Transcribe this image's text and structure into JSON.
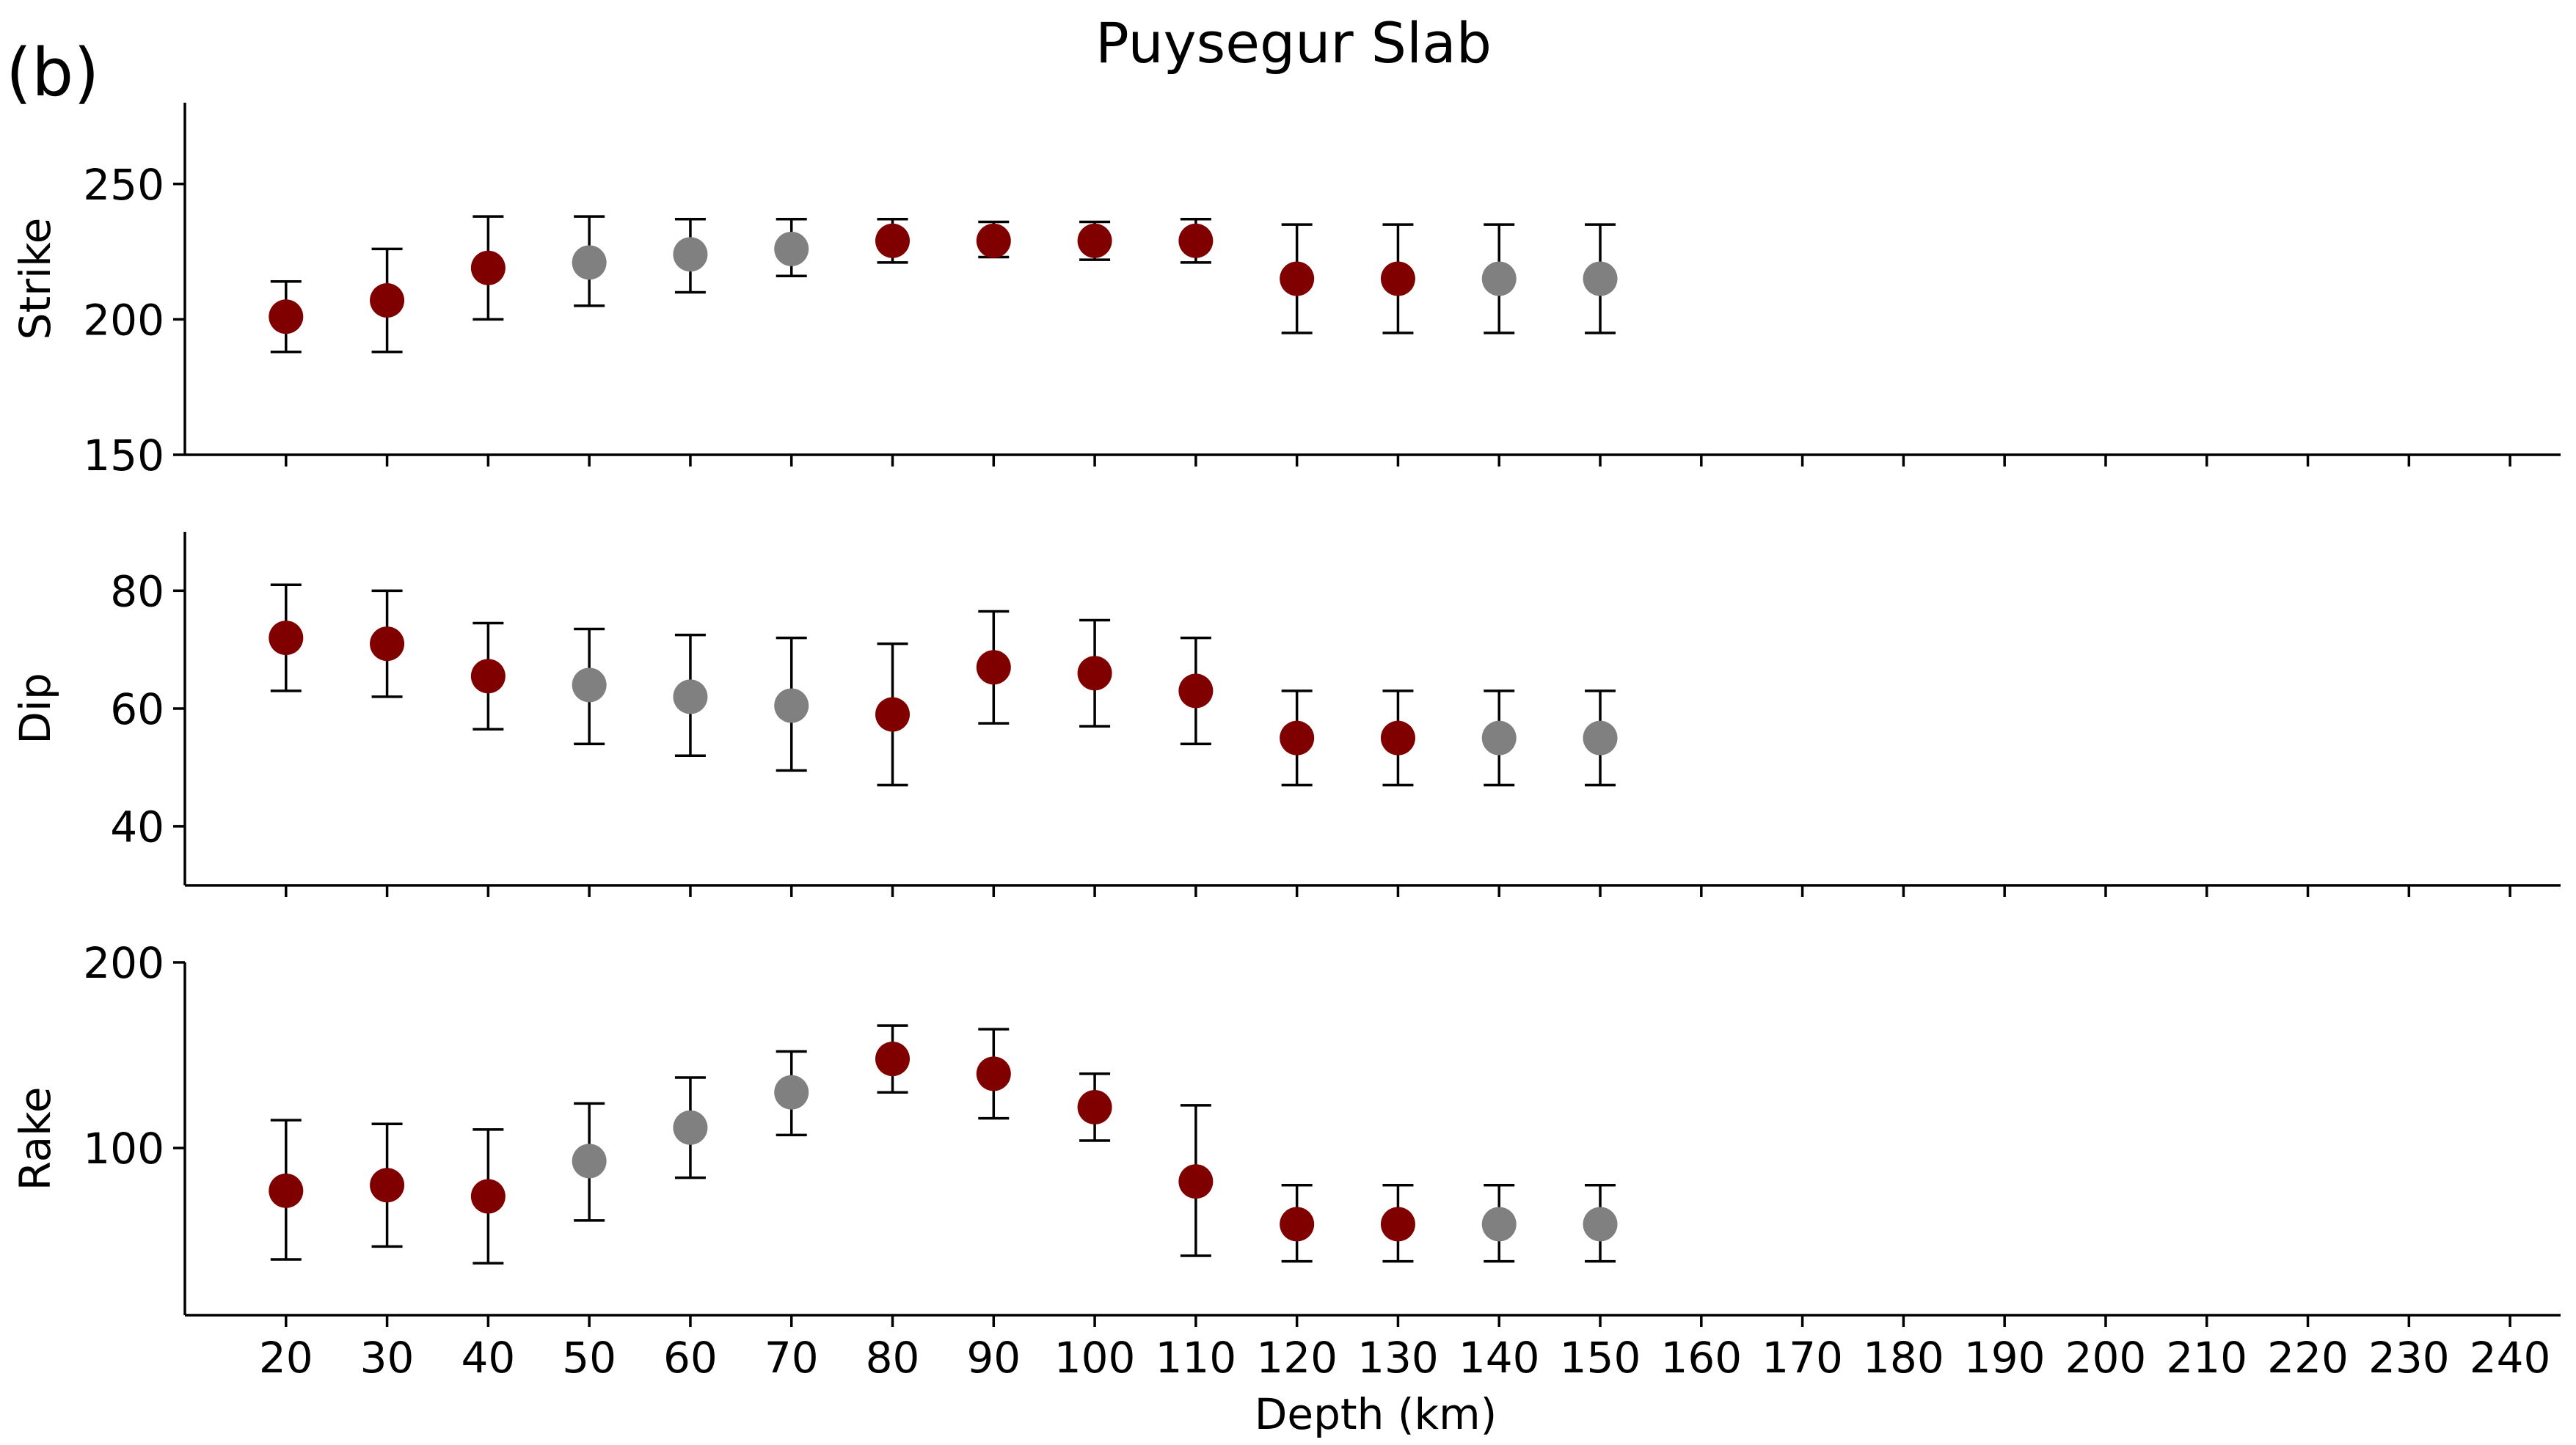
{
  "panel_tag": "(b)",
  "title": "Puysegur Slab",
  "colors": {
    "selected": "#800000",
    "other": "#808080",
    "errorbar": "#000000"
  },
  "chart_data": {
    "type": "scatter",
    "title": "Puysegur Slab",
    "xlabel": "Depth (km)",
    "xlim": [
      10,
      245
    ],
    "x_ticks": [
      20,
      30,
      40,
      50,
      60,
      70,
      80,
      90,
      100,
      110,
      120,
      130,
      140,
      150,
      160,
      170,
      180,
      190,
      200,
      210,
      220,
      230,
      240
    ],
    "sharex": true,
    "grid": false,
    "marker_categories": [
      "selected",
      "other"
    ],
    "panels": [
      {
        "name": "strike",
        "ylabel": "Strike",
        "ylim": [
          150,
          280
        ],
        "y_ticks": [
          150,
          200,
          250
        ],
        "points": [
          {
            "x": 20,
            "y": 201,
            "lo": 188,
            "hi": 214,
            "category": "selected"
          },
          {
            "x": 30,
            "y": 207,
            "lo": 188,
            "hi": 226,
            "category": "selected"
          },
          {
            "x": 40,
            "y": 219,
            "lo": 200,
            "hi": 238,
            "category": "selected"
          },
          {
            "x": 50,
            "y": 221,
            "lo": 205,
            "hi": 238,
            "category": "other"
          },
          {
            "x": 60,
            "y": 224,
            "lo": 210,
            "hi": 237,
            "category": "other"
          },
          {
            "x": 70,
            "y": 226,
            "lo": 216,
            "hi": 237,
            "category": "other"
          },
          {
            "x": 80,
            "y": 229,
            "lo": 221,
            "hi": 237,
            "category": "selected"
          },
          {
            "x": 90,
            "y": 229,
            "lo": 223,
            "hi": 236,
            "category": "selected"
          },
          {
            "x": 100,
            "y": 229,
            "lo": 222,
            "hi": 236,
            "category": "selected"
          },
          {
            "x": 110,
            "y": 229,
            "lo": 221,
            "hi": 237,
            "category": "selected"
          },
          {
            "x": 120,
            "y": 215,
            "lo": 195,
            "hi": 235,
            "category": "selected"
          },
          {
            "x": 130,
            "y": 215,
            "lo": 195,
            "hi": 235,
            "category": "selected"
          },
          {
            "x": 140,
            "y": 215,
            "lo": 195,
            "hi": 235,
            "category": "other"
          },
          {
            "x": 150,
            "y": 215,
            "lo": 195,
            "hi": 235,
            "category": "other"
          }
        ]
      },
      {
        "name": "dip",
        "ylabel": "Dip",
        "ylim": [
          30,
          90
        ],
        "y_ticks": [
          40,
          60,
          80
        ],
        "points": [
          {
            "x": 20,
            "y": 72,
            "lo": 63,
            "hi": 81,
            "category": "selected"
          },
          {
            "x": 30,
            "y": 71,
            "lo": 62,
            "hi": 80,
            "category": "selected"
          },
          {
            "x": 40,
            "y": 65.5,
            "lo": 56.5,
            "hi": 74.5,
            "category": "selected"
          },
          {
            "x": 50,
            "y": 64,
            "lo": 54,
            "hi": 73.5,
            "category": "other"
          },
          {
            "x": 60,
            "y": 62,
            "lo": 52,
            "hi": 72.5,
            "category": "other"
          },
          {
            "x": 70,
            "y": 60.5,
            "lo": 49.5,
            "hi": 72,
            "category": "other"
          },
          {
            "x": 80,
            "y": 59,
            "lo": 47,
            "hi": 71,
            "category": "selected"
          },
          {
            "x": 90,
            "y": 67,
            "lo": 57.5,
            "hi": 76.5,
            "category": "selected"
          },
          {
            "x": 100,
            "y": 66,
            "lo": 57,
            "hi": 75,
            "category": "selected"
          },
          {
            "x": 110,
            "y": 63,
            "lo": 54,
            "hi": 72,
            "category": "selected"
          },
          {
            "x": 120,
            "y": 55,
            "lo": 47,
            "hi": 63,
            "category": "selected"
          },
          {
            "x": 130,
            "y": 55,
            "lo": 47,
            "hi": 63,
            "category": "selected"
          },
          {
            "x": 140,
            "y": 55,
            "lo": 47,
            "hi": 63,
            "category": "other"
          },
          {
            "x": 150,
            "y": 55,
            "lo": 47,
            "hi": 63,
            "category": "other"
          }
        ]
      },
      {
        "name": "rake",
        "ylabel": "Rake",
        "ylim": [
          10,
          200
        ],
        "y_ticks": [
          100,
          200
        ],
        "points": [
          {
            "x": 20,
            "y": 77,
            "lo": 40,
            "hi": 115,
            "category": "selected"
          },
          {
            "x": 30,
            "y": 80,
            "lo": 47,
            "hi": 113,
            "category": "selected"
          },
          {
            "x": 40,
            "y": 74,
            "lo": 38,
            "hi": 110,
            "category": "selected"
          },
          {
            "x": 50,
            "y": 93,
            "lo": 61,
            "hi": 124,
            "category": "other"
          },
          {
            "x": 60,
            "y": 111,
            "lo": 84,
            "hi": 138,
            "category": "other"
          },
          {
            "x": 70,
            "y": 130,
            "lo": 107,
            "hi": 152,
            "category": "other"
          },
          {
            "x": 80,
            "y": 148,
            "lo": 130,
            "hi": 166,
            "category": "selected"
          },
          {
            "x": 90,
            "y": 140,
            "lo": 116,
            "hi": 164,
            "category": "selected"
          },
          {
            "x": 100,
            "y": 122,
            "lo": 104,
            "hi": 140,
            "category": "selected"
          },
          {
            "x": 110,
            "y": 82,
            "lo": 42,
            "hi": 123,
            "category": "selected"
          },
          {
            "x": 120,
            "y": 59,
            "lo": 39,
            "hi": 80,
            "category": "selected"
          },
          {
            "x": 130,
            "y": 59,
            "lo": 39,
            "hi": 80,
            "category": "selected"
          },
          {
            "x": 140,
            "y": 59,
            "lo": 39,
            "hi": 80,
            "category": "other"
          },
          {
            "x": 150,
            "y": 59,
            "lo": 39,
            "hi": 80,
            "category": "other"
          }
        ]
      }
    ]
  }
}
